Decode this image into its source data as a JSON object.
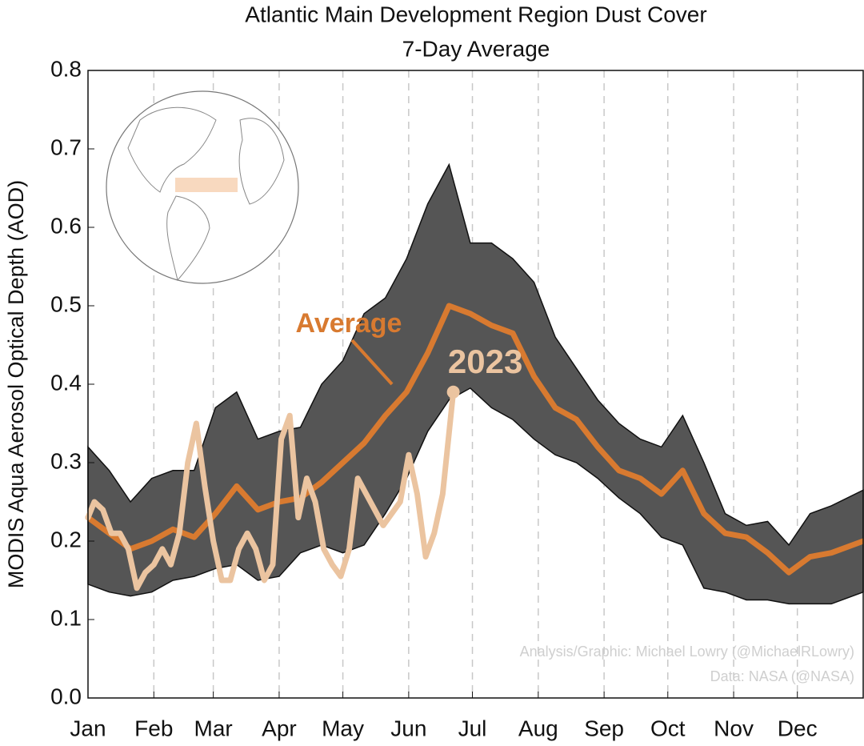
{
  "chart_data": {
    "type": "line",
    "title": "Atlantic Main Development Region Dust Cover",
    "subtitle": "7-Day Average",
    "y_label": "MODIS Aqua Aerosol Optical Depth (AOD)",
    "credits": [
      "Analysis/Graphic: Michael Lowry (@MichaelRLowry)",
      "Data: NASA (@NASA)"
    ],
    "xlim": [
      1,
      366
    ],
    "xticks": [
      {
        "value": 1,
        "label": "Jan"
      },
      {
        "value": 32,
        "label": "Feb"
      },
      {
        "value": 60,
        "label": "Mar"
      },
      {
        "value": 91,
        "label": "Apr"
      },
      {
        "value": 121,
        "label": "May"
      },
      {
        "value": 152,
        "label": "Jun"
      },
      {
        "value": 182,
        "label": "Jul"
      },
      {
        "value": 213,
        "label": "Aug"
      },
      {
        "value": 244,
        "label": "Sep"
      },
      {
        "value": 274,
        "label": "Oct"
      },
      {
        "value": 305,
        "label": "Nov"
      },
      {
        "value": 335,
        "label": "Dec"
      }
    ],
    "ylim": [
      0,
      0.8
    ],
    "yticks": [
      {
        "value": 0,
        "label": "0.0"
      },
      0.1,
      0.2,
      0.3,
      0.4,
      0.5,
      0.6,
      0.7,
      0.8
    ],
    "grid": true,
    "x": [
      1,
      11,
      21,
      31,
      41,
      51,
      61,
      71,
      81,
      91,
      101,
      111,
      121,
      131,
      141,
      151,
      161,
      171,
      181,
      191,
      201,
      211,
      221,
      231,
      241,
      251,
      261,
      271,
      281,
      291,
      301,
      311,
      321,
      331,
      341,
      351,
      366
    ],
    "band": {
      "color": "#555555",
      "upper": [
        0.32,
        0.29,
        0.25,
        0.28,
        0.29,
        0.29,
        0.37,
        0.39,
        0.33,
        0.34,
        0.345,
        0.4,
        0.43,
        0.49,
        0.51,
        0.56,
        0.63,
        0.68,
        0.58,
        0.58,
        0.56,
        0.53,
        0.46,
        0.42,
        0.38,
        0.35,
        0.33,
        0.32,
        0.36,
        0.3,
        0.235,
        0.22,
        0.225,
        0.195,
        0.235,
        0.245,
        0.265
      ],
      "lower": [
        0.145,
        0.135,
        0.13,
        0.135,
        0.15,
        0.155,
        0.165,
        0.17,
        0.15,
        0.155,
        0.185,
        0.195,
        0.185,
        0.195,
        0.235,
        0.28,
        0.34,
        0.38,
        0.395,
        0.37,
        0.355,
        0.33,
        0.31,
        0.3,
        0.28,
        0.255,
        0.235,
        0.205,
        0.195,
        0.14,
        0.135,
        0.125,
        0.125,
        0.12,
        0.12,
        0.12,
        0.135
      ]
    },
    "series": [
      {
        "name": "Average",
        "color": "#d87a30",
        "values": [
          0.23,
          0.21,
          0.19,
          0.2,
          0.215,
          0.205,
          0.235,
          0.27,
          0.24,
          0.25,
          0.255,
          0.275,
          0.3,
          0.325,
          0.36,
          0.39,
          0.44,
          0.5,
          0.49,
          0.475,
          0.465,
          0.41,
          0.37,
          0.355,
          0.32,
          0.29,
          0.28,
          0.26,
          0.29,
          0.235,
          0.21,
          0.205,
          0.185,
          0.16,
          0.18,
          0.185,
          0.2
        ]
      },
      {
        "name": "2023",
        "color": "#ebc4a0",
        "x": [
          1,
          4,
          8,
          12,
          16,
          20,
          24,
          28,
          32,
          36,
          40,
          44,
          48,
          52,
          56,
          60,
          64,
          68,
          72,
          76,
          80,
          84,
          88,
          92,
          96,
          100,
          104,
          108,
          112,
          116,
          120,
          124,
          128,
          132,
          136,
          140,
          144,
          148,
          152,
          156,
          160,
          164,
          168,
          173
        ],
        "values": [
          0.23,
          0.25,
          0.24,
          0.21,
          0.21,
          0.19,
          0.14,
          0.16,
          0.17,
          0.19,
          0.17,
          0.21,
          0.3,
          0.35,
          0.27,
          0.2,
          0.15,
          0.15,
          0.19,
          0.21,
          0.19,
          0.15,
          0.17,
          0.33,
          0.36,
          0.23,
          0.28,
          0.25,
          0.19,
          0.17,
          0.155,
          0.19,
          0.28,
          0.26,
          0.24,
          0.22,
          0.235,
          0.25,
          0.31,
          0.26,
          0.18,
          0.21,
          0.26,
          0.39
        ]
      }
    ]
  }
}
